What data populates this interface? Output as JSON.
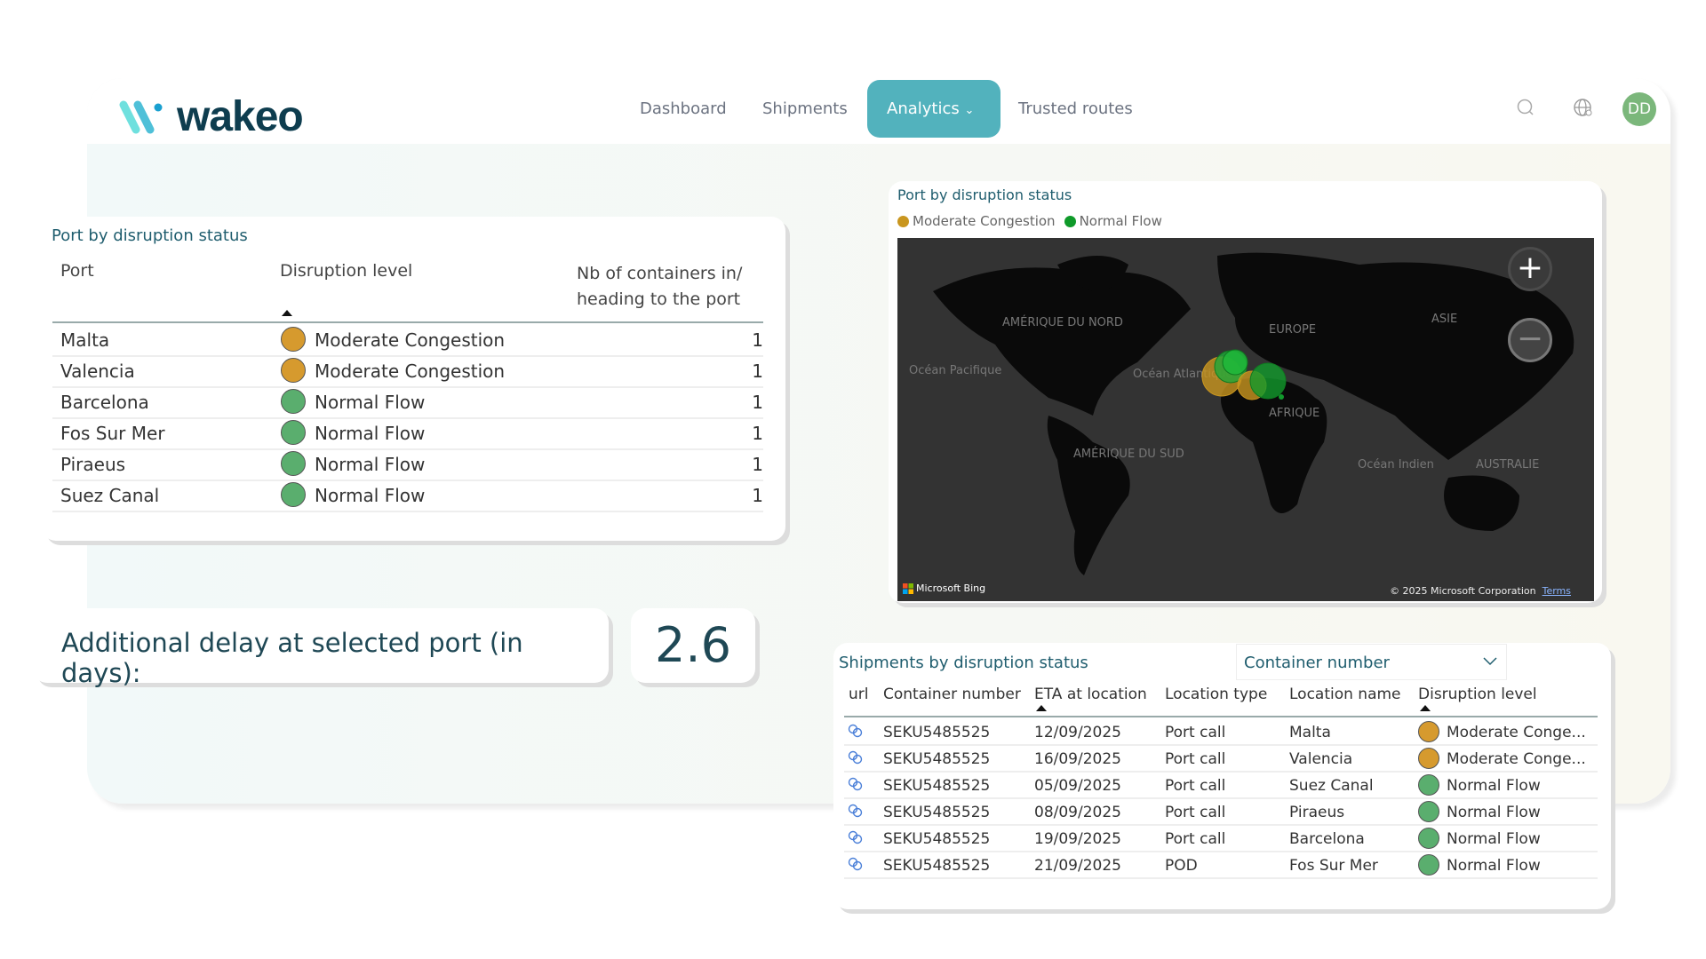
{
  "brand": {
    "name": "wakeo"
  },
  "nav": {
    "items": [
      {
        "label": "Dashboard"
      },
      {
        "label": "Shipments"
      },
      {
        "label": "Analytics",
        "active": true
      },
      {
        "label": "Trusted routes"
      }
    ],
    "user_initials": "DD",
    "icons": [
      "search-icon",
      "globe-user-icon"
    ]
  },
  "colors": {
    "accent": "#52b2bd",
    "moderate": "#d69a2e",
    "normal": "#5aae6e",
    "brand": "#0e3d4f"
  },
  "port_table": {
    "title": "Port by disruption status",
    "columns": [
      "Port",
      "Disruption level",
      "Nb of containers in/ heading to the port"
    ],
    "rows": [
      {
        "port": "Malta",
        "level": "Moderate Congestion",
        "status": "moderate",
        "count": "1"
      },
      {
        "port": "Valencia",
        "level": "Moderate Congestion",
        "status": "moderate",
        "count": "1"
      },
      {
        "port": "Barcelona",
        "level": "Normal Flow",
        "status": "normal",
        "count": "1"
      },
      {
        "port": "Fos Sur Mer",
        "level": "Normal Flow",
        "status": "normal",
        "count": "1"
      },
      {
        "port": "Piraeus",
        "level": "Normal Flow",
        "status": "normal",
        "count": "1"
      },
      {
        "port": "Suez Canal",
        "level": "Normal Flow",
        "status": "normal",
        "count": "1"
      }
    ]
  },
  "delay": {
    "label": "Additional delay at selected port (in days):",
    "value": "2.6"
  },
  "map": {
    "title": "Port by disruption status",
    "legend": [
      {
        "label": "Moderate Congestion",
        "color": "#c9961f"
      },
      {
        "label": "Normal Flow",
        "color": "#0f9a2a"
      }
    ],
    "labels": [
      "AMÉRIQUE DU NORD",
      "EUROPE",
      "ASIE",
      "Océan Pacifique",
      "Océan Atlantique",
      "AFRIQUE",
      "AMÉRIQUE DU SUD",
      "Océan Indien",
      "AUSTRALIE"
    ],
    "attribution": "Microsoft Bing",
    "copyright": "© 2025 Microsoft Corporation",
    "terms": "Terms",
    "zoom_in": "+",
    "zoom_out": "−"
  },
  "shipments": {
    "title": "Shipments by disruption status",
    "filter": "Container number",
    "columns": [
      "url",
      "Container number",
      "ETA at location",
      "Location type",
      "Location name",
      "Disruption level"
    ],
    "rows": [
      {
        "container": "SEKU5485525",
        "eta": "12/09/2025",
        "type": "Port call",
        "name": "Malta",
        "level": "Moderate Conge...",
        "status": "moderate"
      },
      {
        "container": "SEKU5485525",
        "eta": "16/09/2025",
        "type": "Port call",
        "name": "Valencia",
        "level": "Moderate Conge...",
        "status": "moderate"
      },
      {
        "container": "SEKU5485525",
        "eta": "05/09/2025",
        "type": "Port call",
        "name": "Suez Canal",
        "level": "Normal Flow",
        "status": "normal"
      },
      {
        "container": "SEKU5485525",
        "eta": "08/09/2025",
        "type": "Port call",
        "name": "Piraeus",
        "level": "Normal Flow",
        "status": "normal"
      },
      {
        "container": "SEKU5485525",
        "eta": "19/09/2025",
        "type": "Port call",
        "name": "Barcelona",
        "level": "Normal Flow",
        "status": "normal"
      },
      {
        "container": "SEKU5485525",
        "eta": "21/09/2025",
        "type": "POD",
        "name": "Fos Sur Mer",
        "level": "Normal Flow",
        "status": "normal"
      }
    ]
  }
}
